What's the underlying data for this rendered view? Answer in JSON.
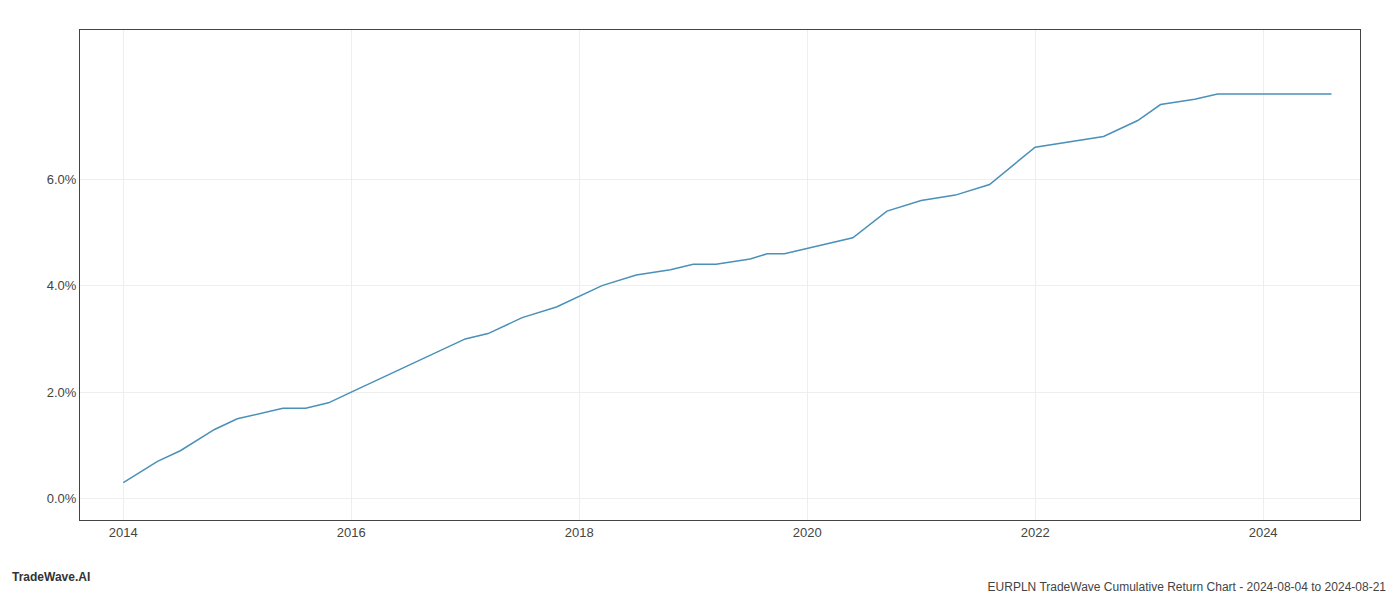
{
  "chart_data": {
    "type": "line",
    "title": "EURPLN TradeWave Cumulative Return Chart - 2024-08-04 to 2024-08-21",
    "annotations": [
      "TradeWave.AI"
    ],
    "x": [
      2014.0,
      2014.15,
      2014.3,
      2014.5,
      2014.65,
      2014.8,
      2015.0,
      2015.2,
      2015.4,
      2015.6,
      2015.8,
      2016.0,
      2016.2,
      2016.5,
      2016.8,
      2017.0,
      2017.2,
      2017.5,
      2017.8,
      2018.0,
      2018.2,
      2018.5,
      2018.8,
      2019.0,
      2019.2,
      2019.5,
      2019.65,
      2019.8,
      2020.0,
      2020.2,
      2020.4,
      2020.7,
      2021.0,
      2021.3,
      2021.6,
      2022.0,
      2022.3,
      2022.6,
      2022.9,
      2023.1,
      2023.4,
      2023.6,
      2023.8,
      2024.0,
      2024.3,
      2024.6
    ],
    "values": [
      0.003,
      0.005,
      0.007,
      0.009,
      0.011,
      0.013,
      0.015,
      0.016,
      0.017,
      0.017,
      0.018,
      0.02,
      0.022,
      0.025,
      0.028,
      0.03,
      0.031,
      0.034,
      0.036,
      0.038,
      0.04,
      0.042,
      0.043,
      0.044,
      0.044,
      0.045,
      0.046,
      0.046,
      0.047,
      0.048,
      0.049,
      0.054,
      0.056,
      0.057,
      0.059,
      0.066,
      0.067,
      0.068,
      0.071,
      0.074,
      0.075,
      0.076,
      0.076,
      0.076,
      0.076,
      0.076
    ],
    "color": "#4a90b8",
    "xlim": [
      2013.62,
      2024.85
    ],
    "xticks": [
      2014,
      2016,
      2018,
      2020,
      2022,
      2024
    ],
    "ylim": [
      -0.004,
      0.088
    ],
    "yticks": [
      {
        "value": 0.0,
        "label": "0.0%"
      },
      {
        "value": 0.02,
        "label": "2.0%"
      },
      {
        "value": 0.04,
        "label": "4.0%"
      },
      {
        "value": 0.06,
        "label": "6.0%"
      }
    ],
    "grid": true
  }
}
